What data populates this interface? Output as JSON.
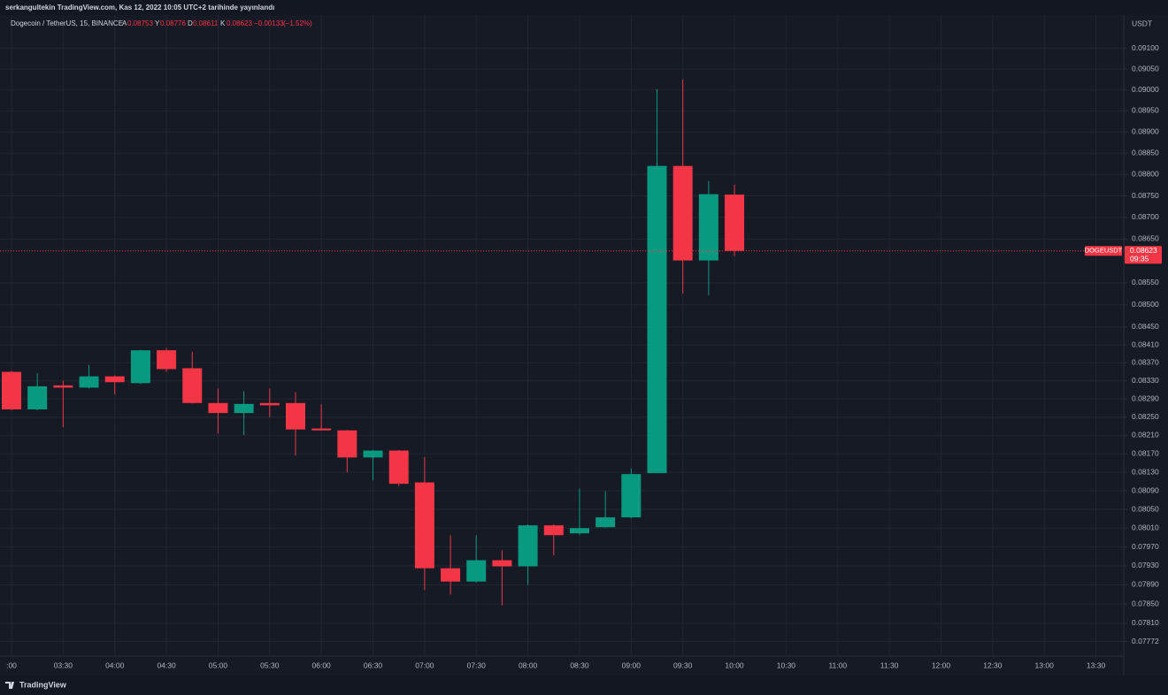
{
  "chart_data": {
    "type": "candlestick",
    "attribution": "serkangultekin TradingView.com, Kas 12, 2022 10:05 UTC+2 tarihinde yayınlandı",
    "symbol": "Dogecoin / TetherUS, 15, BINANCE",
    "open_label": "A",
    "high_label": "Y",
    "low_label": "D",
    "close_label": "K",
    "change": {
      "value": -0.00133,
      "label": "−0.00133"
    },
    "change_pct": {
      "value": -1.52,
      "label": "(−1.52%)"
    },
    "currency": "USDT",
    "price_tag": "DOGEUSDT",
    "countdown": "09:35",
    "brand": "TradingView",
    "up_color": "#089981",
    "down_color": "#f23645",
    "log_scale": true,
    "grid": true,
    "categories": [
      ":00",
      null,
      "03:30",
      null,
      "04:00",
      null,
      "04:30",
      null,
      "05:00",
      null,
      "05:30",
      null,
      "06:00",
      null,
      "06:30",
      null,
      "07:00",
      null,
      "07:30",
      null,
      "08:00",
      null,
      "08:30",
      null,
      "09:00",
      null,
      "09:30",
      null,
      "10:00",
      null,
      "10:30",
      null,
      "11:00",
      null,
      "11:30",
      null,
      "12:00",
      null,
      "12:30",
      null,
      "13:00",
      null,
      "13:30"
    ],
    "open": [
      0.0835,
      0.08267,
      0.0832,
      0.08315,
      0.0834,
      0.08325,
      0.08398,
      0.08358,
      0.08281,
      0.08259,
      0.08281,
      0.08281,
      0.08225,
      0.08221,
      0.08162,
      0.08177,
      0.08108,
      0.07925,
      0.07897,
      0.07942,
      0.07929,
      0.08016,
      0.07999,
      0.08012,
      0.08033,
      0.08128,
      0.0882,
      0.08601,
      0.08753,
      null,
      null,
      null,
      null,
      null,
      null,
      null,
      null,
      null,
      null,
      null,
      null,
      null,
      null
    ],
    "high": [
      0.08352,
      0.08347,
      0.0833,
      0.08365,
      0.08342,
      0.08399,
      0.08403,
      0.08395,
      0.08313,
      0.08307,
      0.08313,
      0.08305,
      0.08278,
      0.08222,
      0.08178,
      0.08178,
      0.08163,
      0.07995,
      0.07995,
      0.07963,
      0.08018,
      0.08018,
      0.08095,
      0.08089,
      0.08138,
      0.09002,
      0.09025,
      0.08785,
      0.08776,
      null,
      null,
      null,
      null,
      null,
      null,
      null,
      null,
      null,
      null,
      null,
      null,
      null,
      null
    ],
    "low": [
      0.08265,
      0.08265,
      0.08228,
      0.08313,
      0.083,
      0.08323,
      0.0835,
      0.0828,
      0.08214,
      0.08211,
      0.0825,
      0.08166,
      0.08221,
      0.0813,
      0.08112,
      0.081,
      0.07879,
      0.0787,
      0.07895,
      0.07847,
      0.0789,
      0.07952,
      0.07995,
      0.08011,
      0.08031,
      0.08128,
      0.08526,
      0.08522,
      0.08611,
      null,
      null,
      null,
      null,
      null,
      null,
      null,
      null,
      null,
      null,
      null,
      null,
      null,
      null
    ],
    "close": [
      0.08267,
      0.08318,
      0.08315,
      0.0834,
      0.08327,
      0.08398,
      0.08356,
      0.08281,
      0.08259,
      0.08279,
      0.08276,
      0.08223,
      0.08221,
      0.08162,
      0.08177,
      0.08105,
      0.07925,
      0.07897,
      0.07942,
      0.07929,
      0.08016,
      0.07995,
      0.0801,
      0.08033,
      0.08126,
      0.0882,
      0.08601,
      0.08754,
      0.08623,
      null,
      null,
      null,
      null,
      null,
      null,
      null,
      null,
      null,
      null,
      null,
      null,
      null,
      null
    ],
    "ylim": [
      0.07742,
      0.09179
    ],
    "yticks": [
      {
        "value": 0.091,
        "label": "0.09100"
      },
      {
        "value": 0.0905,
        "label": "0.09050"
      },
      {
        "value": 0.09,
        "label": "0.09000"
      },
      {
        "value": 0.0895,
        "label": "0.08950"
      },
      {
        "value": 0.089,
        "label": "0.08900"
      },
      {
        "value": 0.0885,
        "label": "0.08850"
      },
      {
        "value": 0.088,
        "label": "0.08800"
      },
      {
        "value": 0.0875,
        "label": "0.08750"
      },
      {
        "value": 0.087,
        "label": "0.08700"
      },
      {
        "value": 0.0865,
        "label": "0.08650"
      },
      {
        "value": 0.0855,
        "label": "0.08550"
      },
      {
        "value": 0.085,
        "label": "0.08500"
      },
      {
        "value": 0.0845,
        "label": "0.08450"
      },
      {
        "value": 0.0841,
        "label": "0.08410"
      },
      {
        "value": 0.0837,
        "label": "0.08370"
      },
      {
        "value": 0.0833,
        "label": "0.08330"
      },
      {
        "value": 0.0829,
        "label": "0.08290"
      },
      {
        "value": 0.0825,
        "label": "0.08250"
      },
      {
        "value": 0.0821,
        "label": "0.08210"
      },
      {
        "value": 0.0817,
        "label": "0.08170"
      },
      {
        "value": 0.0813,
        "label": "0.08130"
      },
      {
        "value": 0.0809,
        "label": "0.08090"
      },
      {
        "value": 0.0805,
        "label": "0.08050"
      },
      {
        "value": 0.0801,
        "label": "0.08010"
      },
      {
        "value": 0.0797,
        "label": "0.07970"
      },
      {
        "value": 0.0793,
        "label": "0.07930"
      },
      {
        "value": 0.0789,
        "label": "0.07890"
      },
      {
        "value": 0.0785,
        "label": "0.07850"
      },
      {
        "value": 0.0781,
        "label": "0.07810"
      },
      0.07772
    ]
  }
}
